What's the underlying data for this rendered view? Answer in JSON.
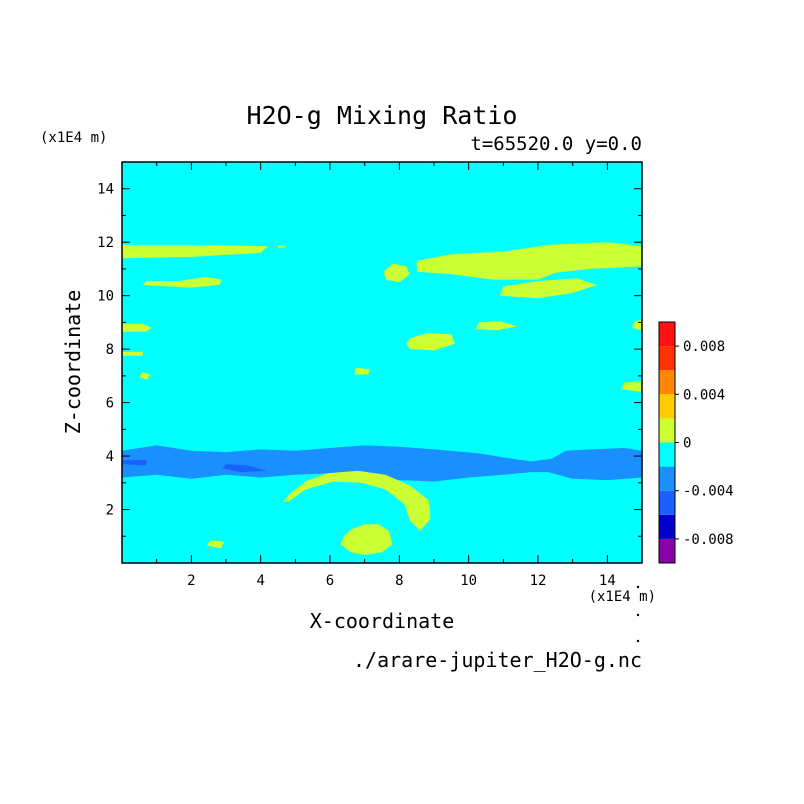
{
  "chart_data": {
    "type": "heatmap",
    "title": "H2O-g Mixing Ratio",
    "subtitle": "t=65520.0 y=0.0",
    "xlabel": "X-coordinate",
    "ylabel": "Z-coordinate",
    "x_unit": "(x1E4 m)",
    "y_unit": "(x1E4 m)",
    "filename": "./arare-jupiter_H2O-g.nc",
    "xlim": [
      0,
      15
    ],
    "ylim": [
      0,
      15
    ],
    "x_ticks": [
      2,
      4,
      6,
      8,
      10,
      12,
      14
    ],
    "y_ticks": [
      2,
      4,
      6,
      8,
      10,
      12,
      14
    ],
    "background_level_color": "#00ffff",
    "colorbar": {
      "levels": [
        -0.01,
        -0.008,
        -0.006,
        -0.004,
        -0.002,
        0,
        0.002,
        0.004,
        0.006,
        0.008,
        0.01
      ],
      "colors": [
        "#8a00a8",
        "#0000cc",
        "#1a60ff",
        "#1a90ff",
        "#00ffff",
        "#ccff33",
        "#ffcc00",
        "#ff8800",
        "#ff3300",
        "#ff1111",
        "#ffaaaa"
      ],
      "tick_labels": [
        "0.008",
        "0.004",
        "0",
        "-0.004",
        "-0.008"
      ],
      "tick_values": [
        0.008,
        0.004,
        0,
        -0.004,
        -0.008
      ]
    },
    "regions": [
      {
        "level": "0 to 0.002",
        "color": "#ccff33",
        "pts": [
          [
            0,
            11.4
          ],
          [
            2,
            11.45
          ],
          [
            4,
            11.6
          ],
          [
            4.2,
            11.85
          ],
          [
            2,
            11.9
          ],
          [
            0,
            11.9
          ]
        ]
      },
      {
        "level": "0 to 0.002",
        "color": "#ccff33",
        "pts": [
          [
            4.5,
            11.8
          ],
          [
            4.7,
            11.8
          ],
          [
            4.7,
            11.88
          ],
          [
            4.5,
            11.88
          ]
        ]
      },
      {
        "level": "0 to 0.002",
        "color": "#ccff33",
        "pts": [
          [
            0.6,
            10.4
          ],
          [
            1.2,
            10.35
          ],
          [
            2,
            10.3
          ],
          [
            2.8,
            10.4
          ],
          [
            2.9,
            10.6
          ],
          [
            2.4,
            10.7
          ],
          [
            1.6,
            10.55
          ],
          [
            0.7,
            10.55
          ]
        ]
      },
      {
        "level": "0 to 0.002",
        "color": "#ccff33",
        "pts": [
          [
            7.6,
            10.6
          ],
          [
            8,
            10.5
          ],
          [
            8.3,
            10.8
          ],
          [
            8.2,
            11.1
          ],
          [
            7.8,
            11.2
          ],
          [
            7.55,
            10.9
          ]
        ]
      },
      {
        "level": "0 to 0.002",
        "color": "#ccff33",
        "pts": [
          [
            8.5,
            10.9
          ],
          [
            9.5,
            10.8
          ],
          [
            10.7,
            10.6
          ],
          [
            12,
            10.6
          ],
          [
            12.5,
            10.85
          ],
          [
            13.5,
            11.0
          ],
          [
            15,
            11.1
          ],
          [
            15,
            11.85
          ],
          [
            14,
            12.0
          ],
          [
            12.3,
            11.9
          ],
          [
            11,
            11.65
          ],
          [
            9.5,
            11.55
          ],
          [
            8.5,
            11.3
          ]
        ]
      },
      {
        "level": "0 to 0.002",
        "color": "#ccff33",
        "pts": [
          [
            10.9,
            10.0
          ],
          [
            12,
            9.9
          ],
          [
            13,
            10.1
          ],
          [
            13.7,
            10.4
          ],
          [
            13.1,
            10.65
          ],
          [
            12,
            10.55
          ],
          [
            11,
            10.35
          ]
        ]
      },
      {
        "level": "0 to 0.002",
        "color": "#ccff33",
        "pts": [
          [
            0,
            8.65
          ],
          [
            0.7,
            8.65
          ],
          [
            0.85,
            8.8
          ],
          [
            0.6,
            8.95
          ],
          [
            0,
            8.95
          ]
        ]
      },
      {
        "level": "0 to 0.002",
        "color": "#ccff33",
        "pts": [
          [
            0,
            7.75
          ],
          [
            0.6,
            7.75
          ],
          [
            0.6,
            7.9
          ],
          [
            0,
            7.9
          ]
        ]
      },
      {
        "level": "0 to 0.002",
        "color": "#ccff33",
        "pts": [
          [
            0.5,
            6.95
          ],
          [
            0.75,
            6.85
          ],
          [
            0.8,
            7.05
          ],
          [
            0.6,
            7.15
          ]
        ]
      },
      {
        "level": "0 to 0.002",
        "color": "#ccff33",
        "pts": [
          [
            8.3,
            8.0
          ],
          [
            9,
            7.95
          ],
          [
            9.6,
            8.2
          ],
          [
            9.5,
            8.55
          ],
          [
            8.8,
            8.6
          ],
          [
            8.3,
            8.4
          ],
          [
            8.2,
            8.2
          ]
        ]
      },
      {
        "level": "0 to 0.002",
        "color": "#ccff33",
        "pts": [
          [
            10.2,
            8.75
          ],
          [
            10.8,
            8.7
          ],
          [
            11.4,
            8.85
          ],
          [
            10.9,
            9.05
          ],
          [
            10.3,
            9.0
          ]
        ]
      },
      {
        "level": "0 to 0.002",
        "color": "#ccff33",
        "pts": [
          [
            14.7,
            8.8
          ],
          [
            15,
            8.7
          ],
          [
            15,
            9.1
          ],
          [
            14.8,
            9.05
          ]
        ]
      },
      {
        "level": "0 to 0.002",
        "color": "#ccff33",
        "pts": [
          [
            14.4,
            6.5
          ],
          [
            15,
            6.4
          ],
          [
            15,
            6.8
          ],
          [
            14.5,
            6.75
          ]
        ]
      },
      {
        "level": "0 to 0.002",
        "color": "#ccff33",
        "pts": [
          [
            6.7,
            7.05
          ],
          [
            7.1,
            7.05
          ],
          [
            7.15,
            7.25
          ],
          [
            6.75,
            7.3
          ]
        ]
      },
      {
        "level": "-0.002 to 0",
        "color": "#1a90ff",
        "pts": [
          [
            0,
            3.2
          ],
          [
            1,
            3.3
          ],
          [
            2,
            3.15
          ],
          [
            3,
            3.3
          ],
          [
            4,
            3.2
          ],
          [
            5,
            3.3
          ],
          [
            6,
            3.35
          ],
          [
            7,
            3.3
          ],
          [
            8,
            3.1
          ],
          [
            9,
            3.05
          ],
          [
            10,
            3.2
          ],
          [
            11,
            3.3
          ],
          [
            11.8,
            3.4
          ],
          [
            12.3,
            3.4
          ],
          [
            13,
            3.15
          ],
          [
            14,
            3.1
          ],
          [
            15,
            3.2
          ],
          [
            15,
            4.2
          ],
          [
            14.5,
            4.3
          ],
          [
            13.5,
            4.25
          ],
          [
            12.8,
            4.2
          ],
          [
            12.4,
            3.9
          ],
          [
            11.8,
            3.8
          ],
          [
            11,
            3.95
          ],
          [
            10.3,
            4.1
          ],
          [
            9,
            4.25
          ],
          [
            8,
            4.35
          ],
          [
            7,
            4.4
          ],
          [
            6,
            4.3
          ],
          [
            5,
            4.2
          ],
          [
            4,
            4.25
          ],
          [
            3,
            4.15
          ],
          [
            2,
            4.2
          ],
          [
            1,
            4.4
          ],
          [
            0.5,
            4.3
          ],
          [
            0,
            4.2
          ]
        ]
      },
      {
        "level": "-0.004 to -0.002",
        "color": "#1a60ff",
        "pts": [
          [
            0,
            3.7
          ],
          [
            0.7,
            3.65
          ],
          [
            0.7,
            3.85
          ],
          [
            0,
            3.85
          ]
        ]
      },
      {
        "level": "-0.004 to -0.002",
        "color": "#1a60ff",
        "pts": [
          [
            2.9,
            3.55
          ],
          [
            3.4,
            3.4
          ],
          [
            4.2,
            3.45
          ],
          [
            3.6,
            3.65
          ],
          [
            3.0,
            3.7
          ]
        ]
      },
      {
        "level": "0 to 0.002",
        "color": "#ccff33",
        "pts": [
          [
            4.8,
            2.3
          ],
          [
            5.3,
            2.75
          ],
          [
            6.1,
            3.05
          ],
          [
            6.9,
            3.0
          ],
          [
            7.6,
            2.75
          ],
          [
            8.15,
            2.2
          ],
          [
            8.3,
            1.6
          ],
          [
            8.6,
            1.2
          ],
          [
            8.9,
            1.65
          ],
          [
            8.85,
            2.35
          ],
          [
            8.3,
            2.9
          ],
          [
            7.6,
            3.3
          ],
          [
            6.8,
            3.45
          ],
          [
            5.9,
            3.35
          ],
          [
            5.3,
            3.05
          ],
          [
            4.85,
            2.6
          ],
          [
            4.65,
            2.3
          ]
        ]
      },
      {
        "level": "0 to 0.002",
        "color": "#ccff33",
        "pts": [
          [
            6.3,
            0.7
          ],
          [
            6.6,
            0.4
          ],
          [
            7.0,
            0.3
          ],
          [
            7.5,
            0.4
          ],
          [
            7.8,
            0.7
          ],
          [
            7.7,
            1.2
          ],
          [
            7.4,
            1.45
          ],
          [
            7.0,
            1.45
          ],
          [
            6.6,
            1.25
          ],
          [
            6.4,
            1.0
          ]
        ]
      },
      {
        "level": "0 to 0.002",
        "color": "#ccff33",
        "pts": [
          [
            2.45,
            0.65
          ],
          [
            2.85,
            0.55
          ],
          [
            2.95,
            0.8
          ],
          [
            2.55,
            0.85
          ]
        ]
      }
    ]
  }
}
